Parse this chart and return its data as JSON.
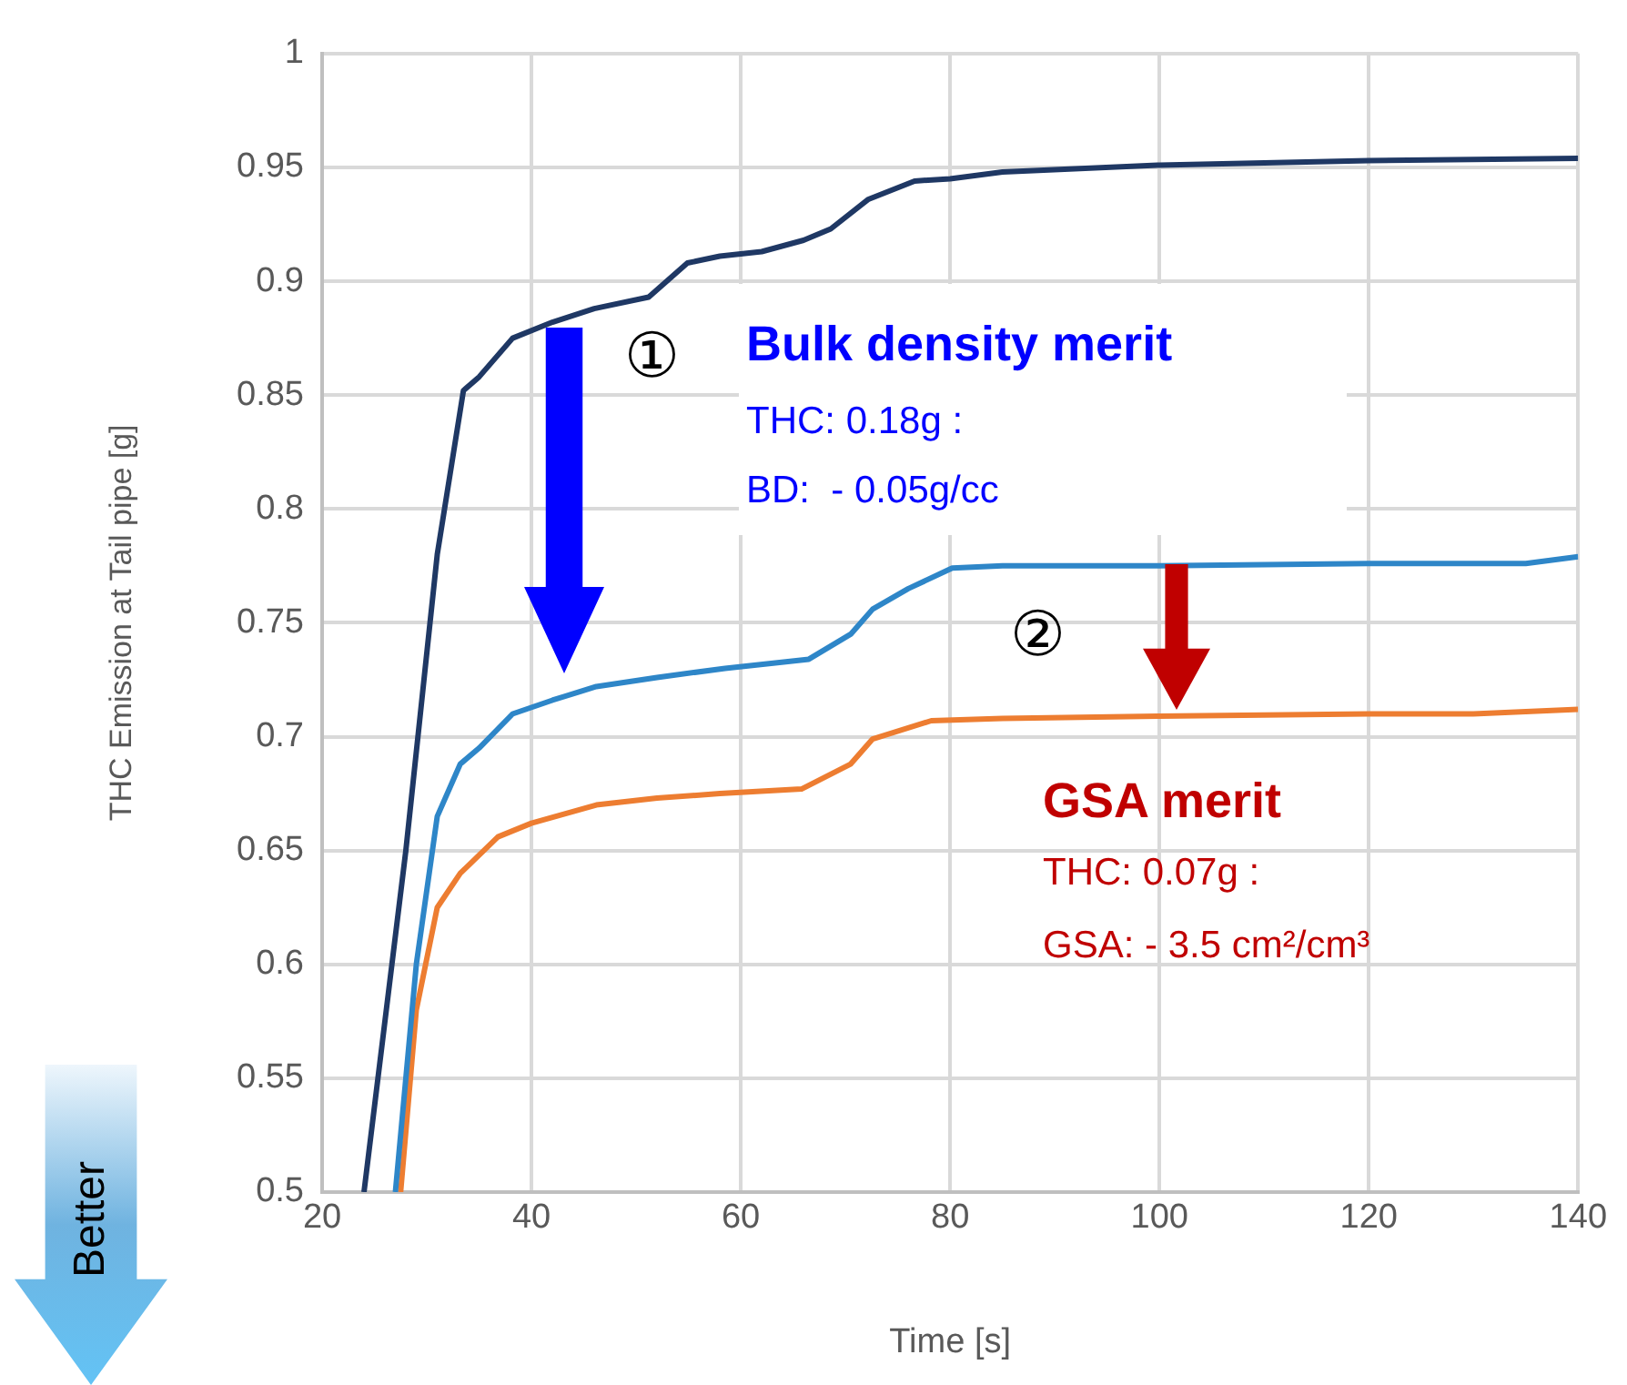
{
  "chart_data": {
    "type": "line",
    "xlabel": "Time [s]",
    "ylabel": "THC Emission at Tail pipe [g]",
    "series": [
      {
        "color": "#1f3864",
        "x": [
          24,
          28,
          31,
          33.5,
          35,
          38.2,
          42,
          46,
          51.2,
          54.9,
          58,
          62,
          66,
          68.6,
          72.2,
          76.6,
          80,
          85,
          100,
          120,
          140
        ],
        "values": [
          0.5,
          0.65,
          0.78,
          0.852,
          0.858,
          0.875,
          0.882,
          0.888,
          0.893,
          0.908,
          0.911,
          0.913,
          0.918,
          0.923,
          0.936,
          0.944,
          0.945,
          0.948,
          0.951,
          0.953,
          0.954
        ]
      },
      {
        "color": "#2e86c8",
        "x": [
          27,
          29,
          31,
          33.2,
          35,
          38.2,
          42,
          46.2,
          52,
          58.5,
          66.5,
          70.5,
          72.6,
          76,
          80.2,
          85,
          100,
          120,
          135,
          140
        ],
        "values": [
          0.5,
          0.6,
          0.665,
          0.688,
          0.695,
          0.71,
          0.716,
          0.722,
          0.726,
          0.73,
          0.734,
          0.745,
          0.756,
          0.765,
          0.774,
          0.775,
          0.775,
          0.776,
          0.776,
          0.779
        ]
      },
      {
        "color": "#ed7d31",
        "x": [
          27.5,
          29,
          31,
          33.2,
          36.8,
          40,
          46.2,
          52,
          58,
          65.8,
          70.5,
          72.6,
          78.2,
          85,
          100,
          120,
          130,
          140
        ],
        "values": [
          0.5,
          0.58,
          0.625,
          0.64,
          0.656,
          0.662,
          0.67,
          0.673,
          0.675,
          0.677,
          0.688,
          0.699,
          0.707,
          0.708,
          0.709,
          0.71,
          0.71,
          0.712
        ]
      }
    ],
    "xlim": [
      20,
      140
    ],
    "xticks": [
      20,
      40,
      60,
      80,
      100,
      120,
      140
    ],
    "ylim": [
      0.5,
      1
    ],
    "yticks": [
      0.5,
      0.55,
      0.6,
      0.65,
      0.7,
      0.75,
      0.8,
      0.85,
      0.9,
      0.95,
      1
    ],
    "grid": true,
    "legend": false,
    "marker": "none",
    "line_style": "solid",
    "annotations": [
      "①",
      "Bulk density merit",
      "THC: 0.18g :",
      "BD:  - 0.05g/cc",
      "②",
      "GSA merit",
      "THC: 0.07g :",
      "GSA: - 3.5 cm²/cm³",
      "Better"
    ]
  }
}
